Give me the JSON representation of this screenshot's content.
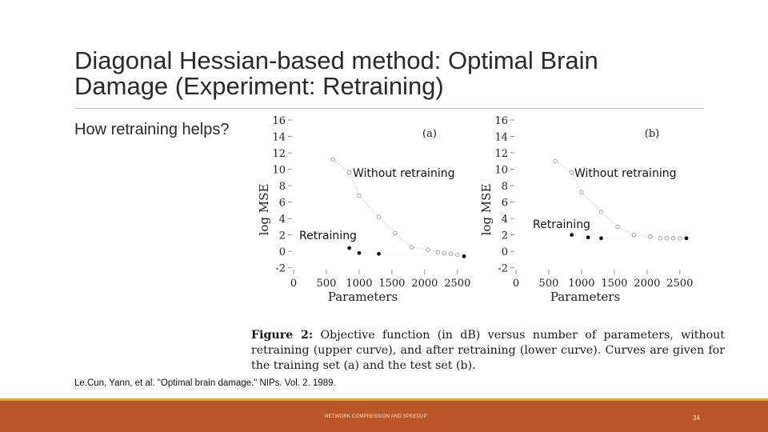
{
  "slide": {
    "title": "Diagonal Hessian-based method: Optimal Brain Damage (Experiment: Retraining)",
    "question": "How retraining helps?",
    "citation": "Le.Cun, Yann, et al. \"Optimal brain damage.\" NIPs. Vol. 2. 1989.",
    "footer": "NETWORK COMPRESSION AND SPEEDUP",
    "page_number": "34"
  },
  "figure": {
    "caption_label": "Figure 2:",
    "caption_text": "Objective function (in dB) versus number of parameters, without retraining (upper curve), and after retraining (lower curve). Curves are given for the training set (a) and the test set (b).",
    "overlay_labels": {
      "without_retraining": "Without retraining",
      "retraining": "Retraining"
    }
  },
  "chart_data": [
    {
      "type": "scatter",
      "panel_label": "(a)",
      "xlabel": "Parameters",
      "ylabel": "log MSE",
      "xlim": [
        0,
        2600
      ],
      "ylim": [
        -3,
        16
      ],
      "xticks": [
        "0",
        "500",
        "1000",
        "1500",
        "2000",
        "2500"
      ],
      "yticks": [
        "-2",
        "0",
        "2",
        "4",
        "6",
        "8",
        "10",
        "12",
        "14",
        "16"
      ],
      "series": [
        {
          "name": "Without retraining",
          "style": "open",
          "x": [
            600,
            850,
            1000,
            1300,
            1550,
            1800,
            2050,
            2200,
            2300,
            2400,
            2500
          ],
          "y": [
            11.2,
            9.6,
            6.8,
            4.2,
            2.2,
            0.5,
            0.2,
            -0.1,
            -0.2,
            -0.3,
            -0.4
          ]
        },
        {
          "name": "Retraining",
          "style": "filled",
          "x": [
            850,
            1000,
            1300,
            2600
          ],
          "y": [
            0.4,
            -0.2,
            -0.3,
            -0.6
          ]
        }
      ]
    },
    {
      "type": "scatter",
      "panel_label": "(b)",
      "xlabel": "Parameters",
      "ylabel": "log MSE",
      "xlim": [
        0,
        2600
      ],
      "ylim": [
        -3,
        16
      ],
      "xticks": [
        "0",
        "500",
        "1000",
        "1500",
        "2000",
        "2500"
      ],
      "yticks": [
        "-2",
        "0",
        "2",
        "4",
        "6",
        "8",
        "10",
        "12",
        "14",
        "16"
      ],
      "series": [
        {
          "name": "Without retraining",
          "style": "open",
          "x": [
            600,
            850,
            1000,
            1300,
            1550,
            1800,
            2050,
            2200,
            2300,
            2400,
            2500
          ],
          "y": [
            11.0,
            9.6,
            7.2,
            4.8,
            3.0,
            2.0,
            1.8,
            1.6,
            1.6,
            1.6,
            1.6
          ]
        },
        {
          "name": "Retraining",
          "style": "filled",
          "x": [
            850,
            1100,
            1300,
            2600
          ],
          "y": [
            2.0,
            1.7,
            1.6,
            1.6
          ]
        }
      ]
    }
  ]
}
